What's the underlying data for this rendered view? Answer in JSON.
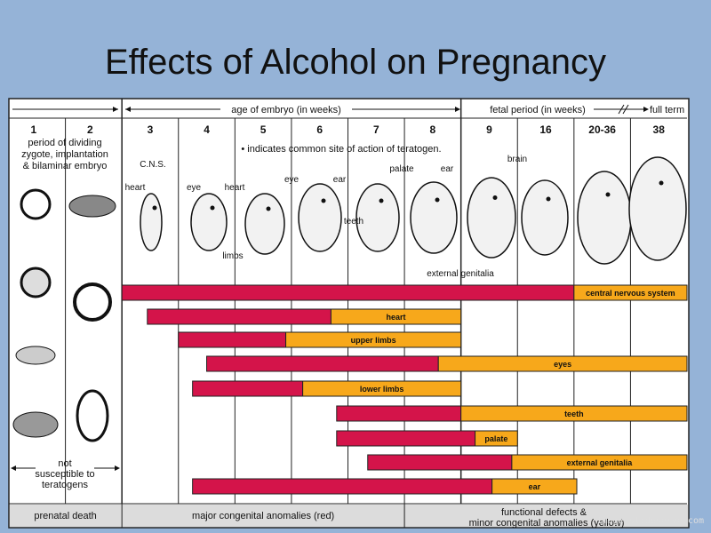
{
  "slide": {
    "title": "Effects of Alcohol on Pregnancy",
    "watermark": "Image slideserve.com"
  },
  "chart_data": {
    "type": "bar",
    "orientation": "horizontal-timeline",
    "header": {
      "embryo_label": "age of embryo (in weeks)",
      "fetal_label": "fetal period (in weeks)",
      "full_term_label": "full term"
    },
    "columns": [
      "1",
      "2",
      "3",
      "4",
      "5",
      "6",
      "7",
      "8",
      "9",
      "16",
      "20-36",
      "38"
    ],
    "notes": {
      "early_period": [
        "period of dividing",
        "zygote, implantation",
        "& bilaminar embryo"
      ],
      "not_susceptible": [
        "not",
        "susceptible to",
        "teratogens"
      ],
      "legend_dot": "• indicates common site of action of teratogen."
    },
    "annotations": [
      "C.N.S.",
      "heart",
      "eye",
      "heart",
      "eye",
      "ear",
      "teeth",
      "palate",
      "ear",
      "brain",
      "limbs",
      "external genitalia"
    ],
    "bar_units": "column position (0 = start of week 1 column, 12 = end of week 38 column)",
    "series": [
      {
        "name": "major congenital anomalies (red)",
        "color": "#d4144a"
      },
      {
        "name": "functional defects & minor congenital anomalies (yellow)",
        "color": "#f7a81b"
      }
    ],
    "bars": [
      {
        "label": "central nervous system",
        "start": 2.0,
        "red_end": 10.0,
        "end": 12.0
      },
      {
        "label": "heart",
        "start": 2.45,
        "red_end": 5.7,
        "end": 8.0
      },
      {
        "label": "upper limbs",
        "start": 3.0,
        "red_end": 4.9,
        "end": 8.0
      },
      {
        "label": "eyes",
        "start": 3.5,
        "red_end": 7.6,
        "end": 12.0
      },
      {
        "label": "lower limbs",
        "start": 3.25,
        "red_end": 5.2,
        "end": 8.0
      },
      {
        "label": "teeth",
        "start": 5.8,
        "red_end": 8.0,
        "end": 12.0
      },
      {
        "label": "palate",
        "start": 5.8,
        "red_end": 8.25,
        "end": 9.0
      },
      {
        "label": "external genitalia",
        "start": 6.35,
        "red_end": 8.9,
        "end": 12.0
      },
      {
        "label": "ear",
        "start": 3.25,
        "red_end": 8.55,
        "end": 10.05
      }
    ],
    "footer": {
      "prenatal": "prenatal death",
      "major": "major congenital anomalies (red)",
      "minor1": "functional defects &",
      "minor2": "minor congenital anomalies (yellow)"
    }
  }
}
